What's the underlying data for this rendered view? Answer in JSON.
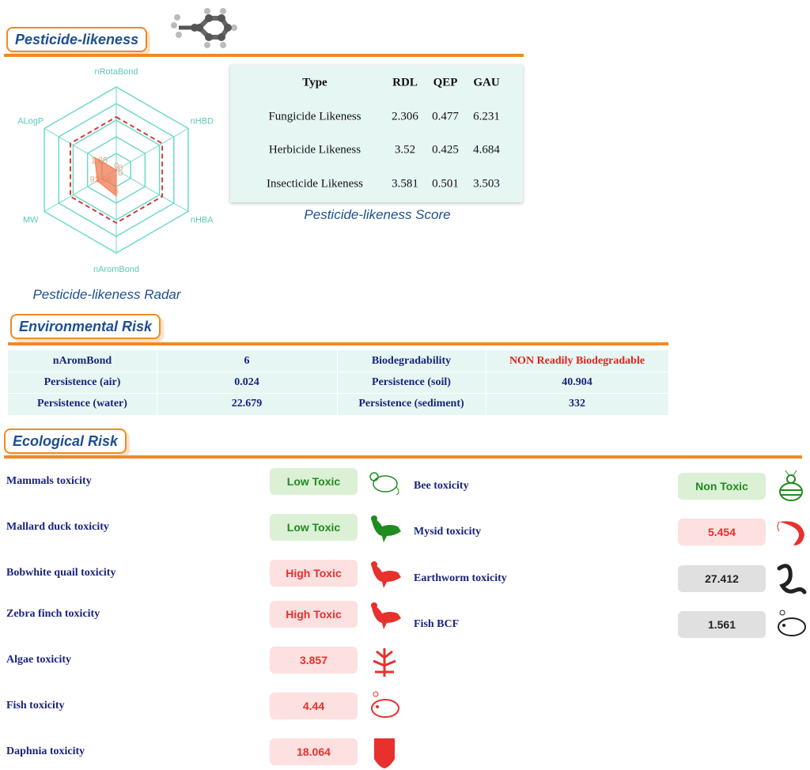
{
  "header": {
    "title": "Pesticide-likeness"
  },
  "radar": {
    "axes": [
      "nRotaBond",
      "nHBD",
      "nHBA",
      "nAromBond",
      "MW",
      "ALogP"
    ],
    "values": [
      0,
      0,
      0,
      6,
      92.06,
      1.85
    ],
    "caption": "Pesticide-likeness Radar"
  },
  "score_table": {
    "columns": [
      "Type",
      "RDL",
      "QEP",
      "GAU"
    ],
    "rows": [
      [
        "Fungicide Likeness",
        2.306,
        0.477,
        6.231
      ],
      [
        "Herbicide Likeness",
        3.52,
        0.425,
        4.684
      ],
      [
        "Insecticide Likeness",
        3.581,
        0.501,
        3.503
      ]
    ],
    "caption": "Pesticide-likeness Score"
  },
  "environmental": {
    "title": "Environmental Risk",
    "rows": [
      [
        "nAromBond",
        6,
        "Biodegradability",
        "NON Readily Biodegradable"
      ],
      [
        "Persistence (air)",
        0.024,
        "Persistence (soil)",
        40.904
      ],
      [
        "Persistence (water)",
        22.679,
        "Persistence (sediment)",
        332
      ]
    ]
  },
  "ecological": {
    "title": "Ecological Risk",
    "left": [
      {
        "label": "Mammals toxicity",
        "result": "Low Toxic",
        "color": "#1e8c1e"
      },
      {
        "label": "Mallard duck toxicity",
        "result": "Low Toxic",
        "color": "#1e8c1e"
      },
      {
        "label": "Bobwhite quail toxicity",
        "result": "High Toxic",
        "color": "#e8302c"
      },
      {
        "label": "Zebra finch toxicity",
        "result": "High Toxic",
        "color": "#e8302c"
      },
      {
        "label": "Algae toxicity",
        "result": 3.857,
        "color": "#e8302c"
      },
      {
        "label": "Fish toxicity",
        "result": 4.44,
        "color": "#e8302c"
      },
      {
        "label": "Daphnia toxicity",
        "result": 18.064,
        "color": "#e8302c"
      }
    ],
    "right": [
      {
        "label": "Bee toxicity",
        "result": "Non Toxic",
        "color": "#1e8c1e"
      },
      {
        "label": "Mysid toxicity",
        "result": 5.454,
        "color": "#e8302c"
      },
      {
        "label": "Earthworm toxicity",
        "result": 27.412,
        "color": "#222222"
      },
      {
        "label": "Fish BCF",
        "result": 1.561,
        "color": "#222222"
      }
    ]
  }
}
